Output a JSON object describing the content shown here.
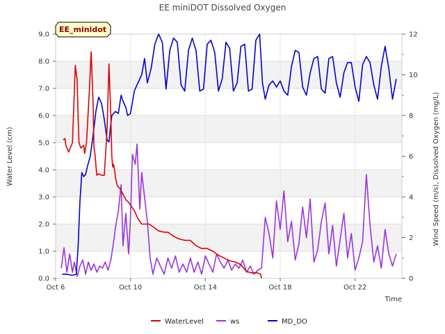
{
  "chart_data": {
    "type": "line",
    "title": "EE miniDOT Dissolved Oxygen",
    "badge": "EE_minidot",
    "xlabel": "Time",
    "ylabel_left": "Water Level (cm)",
    "ylabel_right": "Wind Speed (m/s), Dissolved Oxygen (mg/L)",
    "xlim": [
      6,
      24.5
    ],
    "ylim_left": [
      0,
      9
    ],
    "ylim_right": [
      0,
      12
    ],
    "x_ticks": [
      6,
      10,
      14,
      18,
      22
    ],
    "x_tick_labels": [
      "Oct 6",
      "Oct 10",
      "Oct 14",
      "Oct 18",
      "Oct 22"
    ],
    "y_left_ticks": [
      "0.0",
      "1.0",
      "2.0",
      "3.0",
      "4.0",
      "5.0",
      "6.0",
      "7.0",
      "8.0",
      "9.0"
    ],
    "y_right_ticks": [
      "0",
      "2",
      "4",
      "6",
      "8",
      "10",
      "12"
    ],
    "grid": true,
    "legend_position": "bottom",
    "series": [
      {
        "name": "WaterLevel",
        "axis": "left",
        "color": "#dd0000",
        "x": [
          6.4,
          6.5,
          6.55,
          6.7,
          6.9,
          7.05,
          7.15,
          7.2,
          7.25,
          7.35,
          7.5,
          7.55,
          7.65,
          7.8,
          7.9,
          8.0,
          8.05,
          8.1,
          8.2,
          8.3,
          8.45,
          8.6,
          8.75,
          8.85,
          8.95,
          9.0,
          9.05,
          9.1,
          9.15,
          9.2,
          9.3,
          9.45,
          9.6,
          9.75,
          9.9,
          10.0,
          10.2,
          10.4,
          10.6,
          10.8,
          11.0,
          11.2,
          11.5,
          11.8,
          12.0,
          12.3,
          12.6,
          12.9,
          13.2,
          13.5,
          13.8,
          14.1,
          14.4,
          14.7,
          15.0,
          15.3,
          15.6,
          15.9,
          16.2,
          16.5,
          16.8,
          16.95,
          17.0
        ],
        "y": [
          5.1,
          5.15,
          4.9,
          4.65,
          5.0,
          7.85,
          7.3,
          6.0,
          5.0,
          4.8,
          4.9,
          4.6,
          5.0,
          6.9,
          8.35,
          6.5,
          4.8,
          4.6,
          3.8,
          3.85,
          3.8,
          3.8,
          5.5,
          7.9,
          6.0,
          4.5,
          4.1,
          4.2,
          4.0,
          3.7,
          3.4,
          3.3,
          3.1,
          2.9,
          2.8,
          2.7,
          2.5,
          2.2,
          2.0,
          2.0,
          2.0,
          1.9,
          1.75,
          1.7,
          1.7,
          1.55,
          1.45,
          1.4,
          1.4,
          1.2,
          1.1,
          1.1,
          1.0,
          0.85,
          0.75,
          0.65,
          0.6,
          0.5,
          0.25,
          0.2,
          0.2,
          0.15,
          0.0
        ]
      },
      {
        "name": "ws",
        "axis": "right",
        "color": "#9933dd",
        "x": [
          6.3,
          6.45,
          6.6,
          6.75,
          6.9,
          7.0,
          7.15,
          7.3,
          7.45,
          7.6,
          7.75,
          7.9,
          8.05,
          8.2,
          8.35,
          8.5,
          8.65,
          8.8,
          8.95,
          9.1,
          9.2,
          9.35,
          9.5,
          9.6,
          9.75,
          9.9,
          10.0,
          10.1,
          10.25,
          10.35,
          10.5,
          10.6,
          10.75,
          10.9,
          11.05,
          11.2,
          11.4,
          11.6,
          11.8,
          12.0,
          12.2,
          12.4,
          12.6,
          12.8,
          13.0,
          13.2,
          13.4,
          13.6,
          13.8,
          14.0,
          14.2,
          14.4,
          14.6,
          14.8,
          15.0,
          15.2,
          15.4,
          15.6,
          15.8,
          16.0,
          16.2,
          16.4,
          16.6,
          16.8,
          17.0,
          17.2,
          17.4,
          17.6,
          17.8,
          18.0,
          18.2,
          18.4,
          18.6,
          18.8,
          19.0,
          19.2,
          19.4,
          19.6,
          19.8,
          20.0,
          20.2,
          20.4,
          20.6,
          20.8,
          21.0,
          21.2,
          21.4,
          21.6,
          21.8,
          22.0,
          22.2,
          22.4,
          22.6,
          22.8,
          23.0,
          23.2,
          23.4,
          23.6,
          23.8,
          24.0,
          24.2
        ],
        "y": [
          0.5,
          1.5,
          0.3,
          1.2,
          0.3,
          0.8,
          0.1,
          0.6,
          0.9,
          0.2,
          0.8,
          0.4,
          0.7,
          0.3,
          0.6,
          0.5,
          0.8,
          0.4,
          0.9,
          1.8,
          2.5,
          3.3,
          4.6,
          1.6,
          3.2,
          1.2,
          3.0,
          6.1,
          5.6,
          6.6,
          3.4,
          5.2,
          4.0,
          2.8,
          1.0,
          0.2,
          1.0,
          0.6,
          0.2,
          1.0,
          0.5,
          1.1,
          0.3,
          0.7,
          0.3,
          1.0,
          0.3,
          0.8,
          0.2,
          1.1,
          0.7,
          0.3,
          1.2,
          0.8,
          0.5,
          0.9,
          0.4,
          0.7,
          0.5,
          0.9,
          0.3,
          0.6,
          0.2,
          0.4,
          0.5,
          3.0,
          2.2,
          1.0,
          3.8,
          2.4,
          4.3,
          1.8,
          2.8,
          0.9,
          1.7,
          3.5,
          2.0,
          3.9,
          0.8,
          1.4,
          2.8,
          3.7,
          1.2,
          2.6,
          0.6,
          1.9,
          3.2,
          1.0,
          2.2,
          0.4,
          1.0,
          1.8,
          5.1,
          2.6,
          0.8,
          1.6,
          0.5,
          2.4,
          1.2,
          0.6,
          1.2
        ]
      },
      {
        "name": "MD_DO",
        "axis": "right",
        "color": "#0000cc",
        "x": [
          6.35,
          6.6,
          6.9,
          7.1,
          7.2,
          7.3,
          7.4,
          7.5,
          7.6,
          7.7,
          7.85,
          8.0,
          8.15,
          8.3,
          8.45,
          8.6,
          8.75,
          8.85,
          9.0,
          9.2,
          9.35,
          9.5,
          9.6,
          9.75,
          9.85,
          10.0,
          10.2,
          10.4,
          10.6,
          10.75,
          10.9,
          11.1,
          11.3,
          11.5,
          11.7,
          11.9,
          12.1,
          12.3,
          12.5,
          12.7,
          12.9,
          13.1,
          13.3,
          13.5,
          13.7,
          13.9,
          14.1,
          14.3,
          14.5,
          14.7,
          14.9,
          15.1,
          15.3,
          15.5,
          15.7,
          15.9,
          16.1,
          16.3,
          16.5,
          16.7,
          16.9,
          17.05,
          17.2,
          17.4,
          17.6,
          17.8,
          18.0,
          18.2,
          18.4,
          18.6,
          18.8,
          19.0,
          19.2,
          19.4,
          19.6,
          19.8,
          20.0,
          20.2,
          20.4,
          20.6,
          20.8,
          21.0,
          21.2,
          21.4,
          21.6,
          21.8,
          22.0,
          22.2,
          22.4,
          22.6,
          22.8,
          23.0,
          23.2,
          23.4,
          23.6,
          23.8,
          24.0,
          24.2
        ],
        "y": [
          0.2,
          0.2,
          0.15,
          0.2,
          1.5,
          3.8,
          5.2,
          5.0,
          5.1,
          5.5,
          6.0,
          7.0,
          8.2,
          8.9,
          8.6,
          7.8,
          6.8,
          6.7,
          8.0,
          8.2,
          8.1,
          9.0,
          8.7,
          8.4,
          8.0,
          8.1,
          9.2,
          9.6,
          10.0,
          10.8,
          9.6,
          10.3,
          11.5,
          12.0,
          11.6,
          9.3,
          11.2,
          11.8,
          11.6,
          9.5,
          9.2,
          11.2,
          11.8,
          11.2,
          9.2,
          9.3,
          11.5,
          11.7,
          11.1,
          9.2,
          9.8,
          11.6,
          11.3,
          9.2,
          9.6,
          11.4,
          11.5,
          9.2,
          9.3,
          11.7,
          12.0,
          9.6,
          8.8,
          9.5,
          9.7,
          9.4,
          9.7,
          9.2,
          9.0,
          10.4,
          11.2,
          11.1,
          9.4,
          9.0,
          10.1,
          10.8,
          10.9,
          9.3,
          9.1,
          10.8,
          10.9,
          9.6,
          8.9,
          10.1,
          10.6,
          10.6,
          9.4,
          8.7,
          10.5,
          10.9,
          10.6,
          9.5,
          8.8,
          10.4,
          11.4,
          10.3,
          8.8,
          9.8
        ]
      }
    ]
  }
}
